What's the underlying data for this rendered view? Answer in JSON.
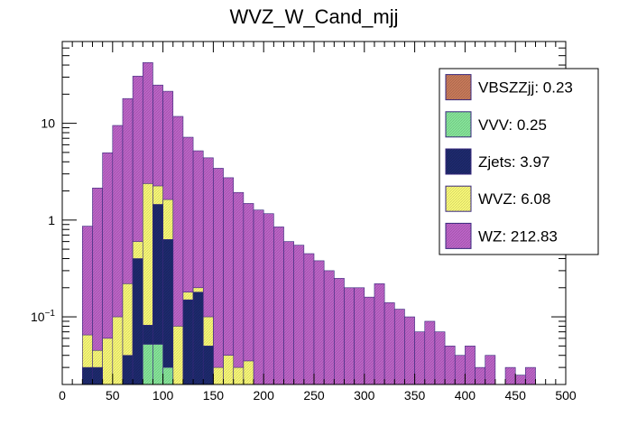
{
  "chart_data": {
    "type": "bar",
    "title": "WVZ_W_Cand_mjj",
    "xlabel": "",
    "ylabel": "",
    "stacked": true,
    "y_scale": "log",
    "xlim": [
      0,
      500
    ],
    "ylim": [
      0.02,
      70
    ],
    "bin_width": 10,
    "bin_edges_start": 0,
    "x_ticks": [
      "0",
      "50",
      "100",
      "150",
      "200",
      "250",
      "300",
      "350",
      "400",
      "450",
      "500"
    ],
    "y_ticks": [
      {
        "value": 0.1,
        "base": "10",
        "exp": "−1"
      },
      {
        "value": 1,
        "label": "1"
      },
      {
        "value": 10,
        "label": "10"
      }
    ],
    "grid": false,
    "legend_position": "top-right",
    "series": [
      {
        "name": "VBSZZjj",
        "legend": "VBSZZjj: 0.23",
        "color": "#c87a5a",
        "values": [
          0,
          0,
          0,
          0,
          0,
          0,
          0,
          0,
          0.012,
          0.012,
          0,
          0,
          0,
          0,
          0,
          0,
          0,
          0,
          0,
          0,
          0,
          0,
          0,
          0,
          0,
          0,
          0,
          0,
          0,
          0,
          0,
          0,
          0,
          0,
          0,
          0,
          0,
          0,
          0,
          0,
          0,
          0,
          0,
          0,
          0,
          0,
          0,
          0,
          0,
          0
        ]
      },
      {
        "name": "VVV",
        "legend": "VVV: 0.25",
        "color": "#86e69a",
        "values": [
          0,
          0,
          0,
          0,
          0,
          0.02,
          0.02,
          0,
          0.04,
          0.04,
          0.03,
          0,
          0,
          0,
          0,
          0,
          0,
          0,
          0,
          0,
          0,
          0,
          0,
          0,
          0,
          0,
          0,
          0,
          0,
          0,
          0,
          0,
          0,
          0,
          0,
          0,
          0,
          0,
          0,
          0,
          0,
          0,
          0,
          0,
          0,
          0,
          0,
          0,
          0,
          0
        ]
      },
      {
        "name": "Zjets",
        "legend": "Zjets: 3.97",
        "color": "#1e2a6e",
        "values": [
          0,
          0,
          0.03,
          0.03,
          0,
          0,
          0.02,
          0.4,
          0.03,
          1.4,
          0.6,
          0,
          0.15,
          0.18,
          0.05,
          0,
          0,
          0,
          0,
          0,
          0,
          0,
          0,
          0,
          0,
          0,
          0,
          0,
          0,
          0,
          0,
          0,
          0,
          0,
          0,
          0,
          0,
          0,
          0,
          0,
          0,
          0,
          0,
          0,
          0,
          0,
          0,
          0,
          0,
          0
        ]
      },
      {
        "name": "WVZ",
        "legend": "WVZ: 6.08",
        "color": "#fafa78",
        "values": [
          0,
          0,
          0.035,
          0.015,
          0.06,
          0.08,
          0.18,
          0.2,
          2.3,
          0.8,
          1.0,
          0.08,
          0.03,
          0.02,
          0.05,
          0.03,
          0.04,
          0.03,
          0.035,
          0.02,
          0.015,
          0,
          0,
          0,
          0,
          0,
          0,
          0,
          0,
          0,
          0,
          0,
          0,
          0,
          0,
          0,
          0,
          0,
          0,
          0,
          0,
          0,
          0,
          0,
          0,
          0,
          0,
          0,
          0,
          0
        ]
      },
      {
        "name": "WZ",
        "legend": "WZ: 212.83",
        "color": "#bd64c8",
        "values": [
          0,
          0,
          0.8,
          2.1,
          4.9,
          9.4,
          17.8,
          30.1,
          40,
          22.6,
          19.8,
          11.7,
          7.0,
          5.0,
          4.3,
          3.4,
          2.7,
          1.9,
          1.45,
          1.25,
          1.15,
          0.85,
          0.6,
          0.55,
          0.45,
          0.38,
          0.3,
          0.25,
          0.2,
          0.2,
          0.16,
          0.22,
          0.14,
          0.12,
          0.1,
          0.07,
          0.09,
          0.07,
          0.05,
          0.04,
          0.05,
          0.03,
          0.04,
          0.02,
          0.03,
          0.025,
          0.03,
          0.02,
          0,
          0
        ]
      }
    ]
  }
}
